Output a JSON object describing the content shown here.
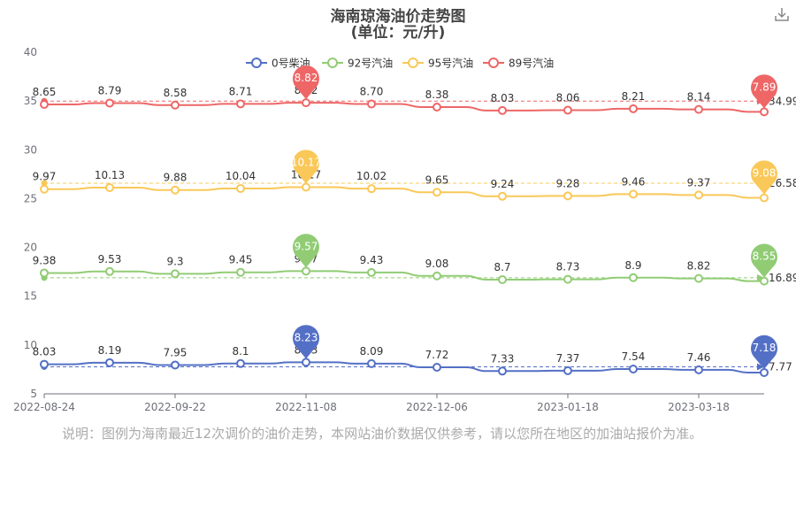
{
  "title": "海南琼海油价走势图",
  "subtitle": "(单位：元/升)",
  "note": "说明：图例为海南最近12次调价的油价走势，本网站油价数据仅供参考，请以您所在地区的加油站报价为准。",
  "download_icon": "download-icon",
  "chart_data": {
    "type": "line",
    "ylim": [
      5,
      40
    ],
    "y_ticks": [
      5,
      10,
      15,
      20,
      25,
      30,
      35,
      40
    ],
    "x_ticks": [
      "2022-08-24",
      "2022-09-22",
      "2022-11-08",
      "2022-12-06",
      "2023-01-18",
      "2023-03-18"
    ],
    "x_tick_indices": [
      0,
      2,
      4,
      6,
      8,
      10
    ],
    "legend_position": "top-center",
    "series": [
      {
        "name": "0号柴油",
        "color": "#5470c6",
        "values": [
          8.03,
          8.19,
          7.95,
          8.1,
          8.23,
          8.09,
          7.72,
          7.33,
          7.37,
          7.54,
          7.46,
          7.18
        ],
        "labels": [
          "8.03",
          "8.19",
          "7.95",
          "8.1",
          "8.23",
          "8.09",
          "7.72",
          "7.33",
          "7.37",
          "7.54",
          "7.46",
          "7.18"
        ],
        "max_label": "8.23",
        "min_label": "7.18",
        "avg_label": "7.77",
        "avg_value": 7.77
      },
      {
        "name": "92号汽油",
        "color": "#91cc75",
        "values": [
          9.38,
          9.53,
          9.3,
          9.45,
          9.57,
          9.43,
          9.08,
          8.7,
          8.73,
          8.9,
          8.82,
          8.55
        ],
        "labels": [
          "9.38",
          "9.53",
          "9.3",
          "9.45",
          "9.57",
          "9.43",
          "9.08",
          "8.7",
          "8.73",
          "8.9",
          "8.82",
          "8.55"
        ],
        "max_label": "9.57",
        "min_label": "8.55",
        "avg_label": "16.89",
        "avg_value": 16.89
      },
      {
        "name": "95号汽油",
        "color": "#fac858",
        "values": [
          9.97,
          10.13,
          9.88,
          10.04,
          10.17,
          10.02,
          9.65,
          9.24,
          9.28,
          9.46,
          9.37,
          9.08
        ],
        "labels": [
          "9.97",
          "10.13",
          "9.88",
          "10.04",
          "10.17",
          "10.02",
          "9.65",
          "9.24",
          "9.28",
          "9.46",
          "9.37",
          "9.08"
        ],
        "max_label": "10.17",
        "min_label": "9.08",
        "avg_label": "26.58",
        "avg_value": 26.58
      },
      {
        "name": "89号汽油",
        "color": "#ee6666",
        "values": [
          8.65,
          8.79,
          8.58,
          8.71,
          8.82,
          8.7,
          8.38,
          8.03,
          8.06,
          8.21,
          8.14,
          7.89
        ],
        "labels": [
          "8.65",
          "8.79",
          "8.58",
          "8.71",
          "8.82",
          "8.70",
          "8.38",
          "8.03",
          "8.06",
          "8.21",
          "8.14",
          "7.89"
        ],
        "max_label": "8.82",
        "min_label": "7.89",
        "avg_label": "34.99",
        "avg_value": 34.99
      }
    ]
  }
}
